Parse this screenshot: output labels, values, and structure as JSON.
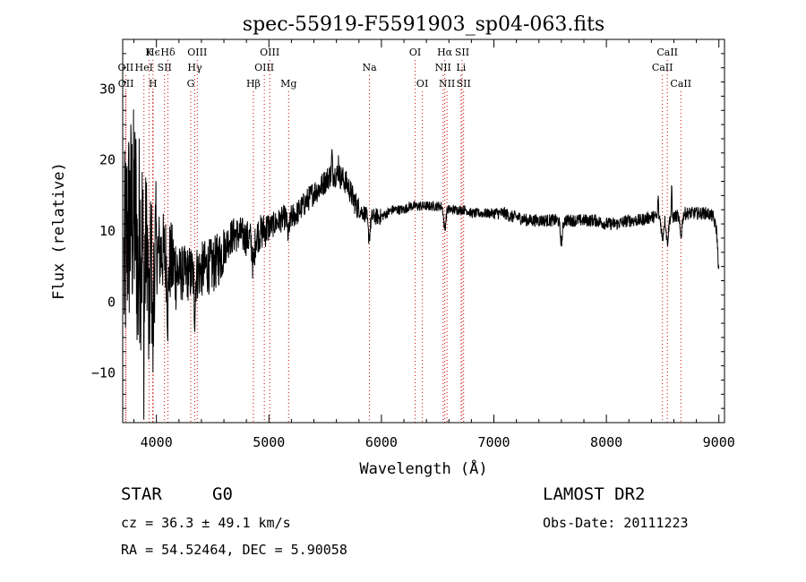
{
  "chart_data": {
    "type": "line",
    "title": "spec-55919-F5591903_sp04-063.fits",
    "xlabel": "Wavelength (Å)",
    "ylabel": "Flux (relative)",
    "xlim": [
      3700,
      9050
    ],
    "ylim": [
      -17,
      37
    ],
    "xticks": [
      4000,
      5000,
      6000,
      7000,
      8000,
      9000
    ],
    "yticks": [
      -10,
      0,
      10,
      20,
      30
    ],
    "grid": false,
    "line_color": "#000000",
    "marker_color": "#cc0000",
    "series": [
      {
        "anchors": [
          [
            3700,
            2
          ],
          [
            3740,
            10
          ],
          [
            3780,
            12
          ],
          [
            3820,
            12
          ],
          [
            3860,
            9
          ],
          [
            3900,
            9
          ],
          [
            3950,
            8
          ],
          [
            4000,
            7
          ],
          [
            4050,
            7
          ],
          [
            4100,
            6
          ],
          [
            4150,
            5
          ],
          [
            4200,
            4
          ],
          [
            4250,
            4
          ],
          [
            4300,
            4
          ],
          [
            4350,
            4
          ],
          [
            4400,
            4.5
          ],
          [
            4450,
            5
          ],
          [
            4500,
            5
          ],
          [
            4550,
            6
          ],
          [
            4600,
            7.5
          ],
          [
            4650,
            9
          ],
          [
            4700,
            9.5
          ],
          [
            4750,
            9.5
          ],
          [
            4800,
            9
          ],
          [
            4850,
            9
          ],
          [
            4900,
            9.5
          ],
          [
            4950,
            10
          ],
          [
            5000,
            10.5
          ],
          [
            5050,
            11
          ],
          [
            5100,
            11.5
          ],
          [
            5150,
            12
          ],
          [
            5200,
            12
          ],
          [
            5250,
            12.5
          ],
          [
            5300,
            13.5
          ],
          [
            5350,
            14.5
          ],
          [
            5400,
            15.5
          ],
          [
            5450,
            16
          ],
          [
            5500,
            17
          ],
          [
            5550,
            18
          ],
          [
            5600,
            18
          ],
          [
            5650,
            17.5
          ],
          [
            5700,
            16.5
          ],
          [
            5750,
            14.5
          ],
          [
            5800,
            13
          ],
          [
            5850,
            12.5
          ],
          [
            5900,
            12
          ],
          [
            5950,
            12
          ],
          [
            6000,
            12
          ],
          [
            6050,
            12.5
          ],
          [
            6100,
            13
          ],
          [
            6150,
            13
          ],
          [
            6200,
            13
          ],
          [
            6250,
            13.5
          ],
          [
            6300,
            13.5
          ],
          [
            6350,
            13.5
          ],
          [
            6400,
            13.5
          ],
          [
            6450,
            13.5
          ],
          [
            6500,
            13.5
          ],
          [
            6550,
            13.5
          ],
          [
            6600,
            13
          ],
          [
            6650,
            13
          ],
          [
            6700,
            13
          ],
          [
            6750,
            13
          ],
          [
            6800,
            12.5
          ],
          [
            6850,
            12.5
          ],
          [
            6900,
            12.5
          ],
          [
            6950,
            12.5
          ],
          [
            7000,
            12.5
          ],
          [
            7050,
            12.5
          ],
          [
            7100,
            12.5
          ],
          [
            7150,
            12
          ],
          [
            7200,
            12
          ],
          [
            7300,
            11.5
          ],
          [
            7400,
            11.5
          ],
          [
            7500,
            11.5
          ],
          [
            7600,
            11.5
          ],
          [
            7700,
            11.5
          ],
          [
            7800,
            11.5
          ],
          [
            7900,
            11.5
          ],
          [
            8000,
            11
          ],
          [
            8100,
            11
          ],
          [
            8200,
            11.5
          ],
          [
            8300,
            11.5
          ],
          [
            8400,
            12
          ],
          [
            8500,
            12
          ],
          [
            8600,
            12
          ],
          [
            8700,
            12.5
          ],
          [
            8800,
            12.5
          ],
          [
            8900,
            12.5
          ],
          [
            8950,
            12
          ],
          [
            8980,
            10
          ],
          [
            9000,
            4
          ]
        ],
        "absorption": [
          [
            3835,
            8
          ],
          [
            3889,
            12
          ],
          [
            3934,
            14
          ],
          [
            3968,
            14
          ],
          [
            4101,
            7
          ],
          [
            4340,
            5
          ],
          [
            4861,
            4
          ],
          [
            5173,
            2.5
          ],
          [
            5890,
            3
          ],
          [
            6563,
            3
          ],
          [
            7600,
            3
          ],
          [
            8498,
            3
          ],
          [
            8542,
            3.5
          ],
          [
            8662,
            3
          ]
        ],
        "spikes": [
          [
            5560,
            3
          ],
          [
            5620,
            2.5
          ],
          [
            8580,
            4
          ],
          [
            8460,
            3
          ]
        ]
      }
    ],
    "lines": [
      {
        "label": "Hϵ",
        "x": 3970,
        "row": 1
      },
      {
        "label": "OII",
        "x": 3727,
        "row": 2
      },
      {
        "label": "OII",
        "x": 3729,
        "row": 3
      },
      {
        "label": "Hδ",
        "x": 4102,
        "row": 1
      },
      {
        "label": "K",
        "x": 3934,
        "row": 1
      },
      {
        "label": "H",
        "x": 3969,
        "row": 3
      },
      {
        "label": "HeI",
        "x": 3889,
        "row": 2
      },
      {
        "label": "SII",
        "x": 4072,
        "row": 2
      },
      {
        "label": "Hγ",
        "x": 4341,
        "row": 2
      },
      {
        "label": "G",
        "x": 4305,
        "row": 3
      },
      {
        "label": "OIII",
        "x": 4363,
        "row": 1
      },
      {
        "label": "Hβ",
        "x": 4862,
        "row": 3
      },
      {
        "label": "OIII",
        "x": 4959,
        "row": 2
      },
      {
        "label": "OIII",
        "x": 5007,
        "row": 1
      },
      {
        "label": "Mg",
        "x": 5175,
        "row": 3
      },
      {
        "label": "Na",
        "x": 5894,
        "row": 2
      },
      {
        "label": "OI",
        "x": 6300,
        "row": 1
      },
      {
        "label": "OI",
        "x": 6364,
        "row": 3
      },
      {
        "label": "Hα",
        "x": 6563,
        "row": 1
      },
      {
        "label": "NII",
        "x": 6548,
        "row": 2
      },
      {
        "label": "NII",
        "x": 6583,
        "row": 3
      },
      {
        "label": "SII",
        "x": 6717,
        "row": 1
      },
      {
        "label": "Li",
        "x": 6708,
        "row": 2
      },
      {
        "label": "SII",
        "x": 6731,
        "row": 3
      },
      {
        "label": "CaII",
        "x": 8542,
        "row": 1
      },
      {
        "label": "CaII",
        "x": 8498,
        "row": 2
      },
      {
        "label": "CaII",
        "x": 8662,
        "row": 3
      }
    ]
  },
  "info": {
    "class_label": "STAR",
    "subclass_label": "G0",
    "survey": "LAMOST DR2",
    "cz": "cz = 36.3 ± 49.1 km/s",
    "obs_date": "Obs-Date: 20111223",
    "coords": "RA =  54.52464, DEC =   5.90058"
  }
}
